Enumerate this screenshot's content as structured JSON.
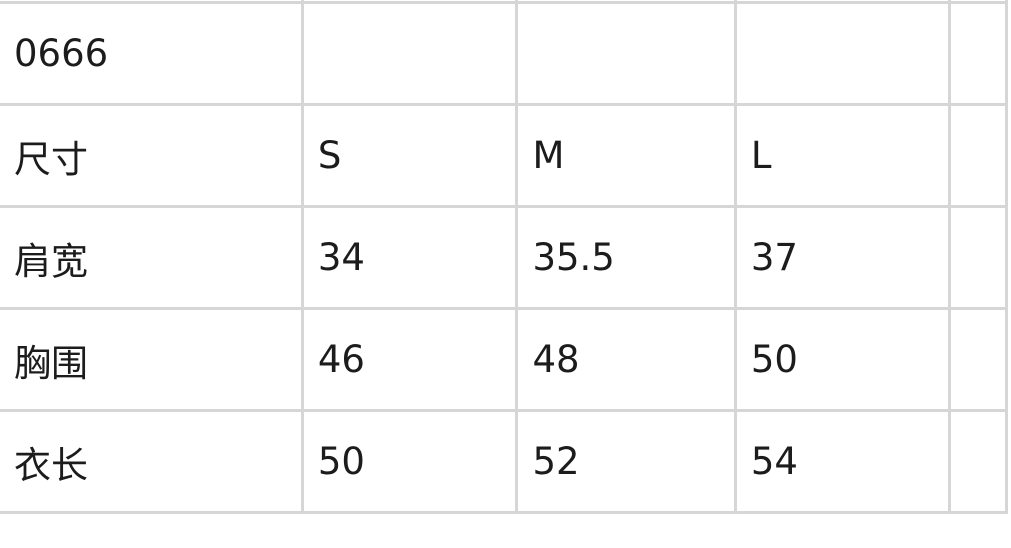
{
  "table": {
    "model": "0666",
    "header": [
      "尺寸",
      "S",
      "M",
      "L"
    ],
    "rows": [
      [
        "肩宽",
        "34",
        "35.5",
        "37"
      ],
      [
        "胸围",
        "46",
        "48",
        "50"
      ],
      [
        "衣长",
        "50",
        "52",
        "54"
      ]
    ]
  }
}
